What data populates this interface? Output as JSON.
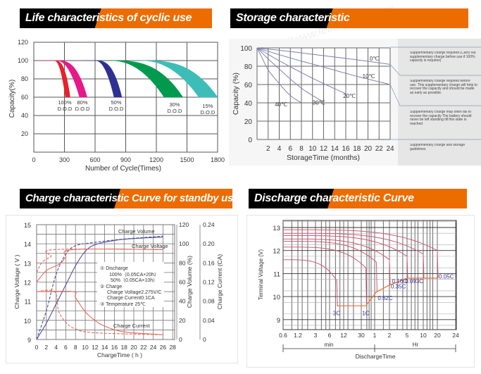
{
  "headers": {
    "life": "Life characteristics of cyclic use",
    "storage": "Storage characteristic",
    "charge": "Charge characteristic Curve for standby use",
    "discharge": "Discharge characteristic Curve"
  },
  "watermark": "http://www.felicitysolar.com",
  "chart_data": [
    {
      "type": "area",
      "title": "Life characteristics of cyclic use",
      "xlabel": "Number of Cycle(Times)",
      "ylabel": "Capacity(%)",
      "xlim": [
        0,
        1800
      ],
      "ylim": [
        0,
        120
      ],
      "xticks": [
        "0",
        "300",
        "600",
        "900",
        "1200",
        "1500",
        "1800"
      ],
      "yticks": [
        "20",
        "40",
        "60",
        "80",
        "100",
        "120"
      ],
      "grid": true,
      "series": [
        {
          "name": "100%",
          "sub": "D.O.D",
          "color": "#e8202a",
          "decline_start": 200,
          "end_cycles_min": 310,
          "end_cycles_max": 356,
          "start_capacity": 100,
          "end_capacity": 60
        },
        {
          "name": "80%",
          "sub": "D.O.D",
          "color": "#e6198a",
          "decline_start": 220,
          "end_cycles_min": 448,
          "end_cycles_max": 522,
          "start_capacity": 100,
          "end_capacity": 60
        },
        {
          "name": "50%",
          "sub": "D.O.D",
          "color": "#2e3192",
          "decline_start": 600,
          "end_cycles_min": 786,
          "end_cycles_max": 862,
          "start_capacity": 100,
          "end_capacity": 60
        },
        {
          "name": "30%",
          "sub": "D.O.D",
          "color": "#009a4e",
          "decline_start": 750,
          "end_cycles_min": 1276,
          "end_cycles_max": 1460,
          "start_capacity": 100,
          "end_capacity": 60
        },
        {
          "name": "15%",
          "sub": "D.O.D",
          "color": "#3dbdb8",
          "decline_start": 1050,
          "end_cycles_min": 1616,
          "end_cycles_max": 1800,
          "start_capacity": 100,
          "end_capacity": 60
        }
      ]
    },
    {
      "type": "line",
      "title": "Storage characteristic",
      "xlabel": "StorageTime (months)",
      "ylabel": "Capacity (%)",
      "xlim": [
        0,
        24
      ],
      "ylim": [
        0,
        100
      ],
      "xticks": [
        "2",
        "4",
        "6",
        "8",
        "10",
        "12",
        "14",
        "16",
        "18",
        "20",
        "22",
        "24"
      ],
      "yticks": [
        "0",
        "20",
        "40",
        "60",
        "80",
        "100"
      ],
      "grid": true,
      "series": [
        {
          "name": "0℃",
          "color": "#8080b0",
          "points": [
            [
              0,
              100
            ],
            [
              6,
              96
            ],
            [
              12,
              91.5
            ],
            [
              18,
              87
            ],
            [
              24,
              82
            ]
          ]
        },
        {
          "name": "10℃",
          "color": "#8080b0",
          "points": [
            [
              0,
              100
            ],
            [
              6,
              89
            ],
            [
              12,
              79
            ],
            [
              18,
              69
            ],
            [
              24,
              60
            ]
          ]
        },
        {
          "name": "20℃",
          "color": "#8080b0",
          "points": [
            [
              0,
              100
            ],
            [
              4,
              86
            ],
            [
              8,
              73
            ],
            [
              12,
              61
            ],
            [
              16,
              50
            ]
          ]
        },
        {
          "name": "30℃",
          "color": "#8080b0",
          "points": [
            [
              0,
              100
            ],
            [
              2,
              88
            ],
            [
              4,
              77
            ],
            [
              6,
              66
            ],
            [
              8,
              56
            ],
            [
              10,
              48
            ],
            [
              12,
              41
            ]
          ]
        },
        {
          "name": "40℃",
          "color": "#8080b0",
          "points": [
            [
              0,
              100
            ],
            [
              1,
              88
            ],
            [
              2,
              76
            ],
            [
              4,
              61
            ],
            [
              6,
              48
            ],
            [
              8,
              40
            ]
          ]
        }
      ],
      "guidelines": [
        "Supplementary charge required (Carry out supplementary charge before use if 100% capacity is requires)",
        "Supplementary charge required before use. This supplementary charge will help to recover the capacity and should be made  as early as possible.",
        "Supplementary charge may often fail to recover the capacity The battery should never be left standing till this state is reached",
        "Supplementary charge and storage guidelines"
      ]
    },
    {
      "type": "line",
      "title": "Charge characteristic Curve for standby use",
      "xlabel": "ChargeTime ( h )",
      "ylabel": "Charge Voltage ( V )",
      "y2label": "Charge Volume (%)",
      "y3label": "Charge Current (CA)",
      "xlim": [
        0,
        28
      ],
      "ylim": [
        9,
        15
      ],
      "y2lim": [
        0,
        120
      ],
      "y3lim": [
        0,
        0.24
      ],
      "xticks": [
        "0",
        "2",
        "4",
        "6",
        "8",
        "10",
        "12",
        "14",
        "16",
        "18",
        "20",
        "22",
        "24",
        "26",
        "28"
      ],
      "yticks": [
        "9",
        "10",
        "11",
        "12",
        "13",
        "14",
        "15"
      ],
      "y2ticks": [
        "0",
        "20",
        "40",
        "60",
        "80",
        "100",
        "120"
      ],
      "y3ticks": [
        "0",
        "0.04",
        "0.08",
        "0.12",
        "0.16",
        "0.20",
        "0.24"
      ],
      "grid": true,
      "series": [
        {
          "name": "Charge Volume",
          "variant": "100% discharge",
          "axis": "y2",
          "style": "solid",
          "color": "#5050a0",
          "points": [
            [
              0,
              0
            ],
            [
              2,
              17
            ],
            [
              4,
              37
            ],
            [
              6,
              57
            ],
            [
              8,
              77
            ],
            [
              10,
              92
            ],
            [
              12,
              99
            ],
            [
              16,
              103.5
            ],
            [
              20,
              105.5
            ],
            [
              26,
              107
            ]
          ]
        },
        {
          "name": "Charge Volume",
          "variant": "50% discharge",
          "axis": "y2",
          "style": "dashed",
          "color": "#5050a0",
          "points": [
            [
              0,
              0
            ],
            [
              2,
              30
            ],
            [
              4,
              68
            ],
            [
              6,
              89
            ],
            [
              8,
              98
            ],
            [
              12,
              101.5
            ],
            [
              18,
              105
            ],
            [
              26,
              108
            ]
          ]
        },
        {
          "name": "Charge Voltage",
          "variant": "100% discharge",
          "axis": "y",
          "style": "solid",
          "color": "#e86a5a",
          "points": [
            [
              0,
              12.0
            ],
            [
              2,
              12.6
            ],
            [
              4,
              12.85
            ],
            [
              5,
              13.0
            ],
            [
              6,
              13.3
            ],
            [
              7.5,
              13.7
            ],
            [
              26,
              13.7
            ]
          ]
        },
        {
          "name": "Charge Voltage",
          "variant": "50% discharge",
          "axis": "y",
          "style": "dashed",
          "color": "#e86a5a",
          "points": [
            [
              0,
              12.5
            ],
            [
              1,
              13.0
            ],
            [
              2,
              13.2
            ],
            [
              3,
              13.35
            ],
            [
              3.7,
              13.7
            ],
            [
              26,
              13.7
            ]
          ]
        },
        {
          "name": "Charge Current",
          "variant": "100% discharge",
          "axis": "y3",
          "style": "solid",
          "color": "#e86a5a",
          "points": [
            [
              0,
              0.1
            ],
            [
              7.5,
              0.1
            ],
            [
              8,
              0.088
            ],
            [
              10,
              0.058
            ],
            [
              12,
              0.04
            ],
            [
              14,
              0.028
            ],
            [
              18,
              0.016
            ],
            [
              26,
              0.01
            ]
          ]
        },
        {
          "name": "Charge Current",
          "variant": "50% discharge",
          "axis": "y3",
          "style": "dashed",
          "color": "#e86a5a",
          "points": [
            [
              0,
              0.1
            ],
            [
              3.7,
              0.1
            ],
            [
              4.5,
              0.06
            ],
            [
              6,
              0.036
            ],
            [
              8,
              0.022
            ],
            [
              12,
              0.014
            ],
            [
              26,
              0.01
            ]
          ]
        }
      ],
      "legend_lines": [
        "①  Discharge",
        "100%（0.05CA×20h）",
        "50%（0.05CA×10h）",
        "②  Charge",
        "Charge Voltage2.275V/C",
        "Charge Current0.1CA",
        "③  Temperature 25℃"
      ]
    },
    {
      "type": "line",
      "title": "Discharge characteristic Curve",
      "xlabel": "DischargeTime",
      "ylabel": "Terminal Voltage  (V)",
      "x_scale": "log",
      "xticks": [
        "0.6",
        "1.2",
        "3",
        "6",
        "12",
        "30",
        "1",
        "2",
        "5",
        "10",
        "20",
        "24"
      ],
      "xtick_minutes": [
        0.6,
        1.2,
        3,
        6,
        12,
        30,
        60,
        120,
        300,
        600,
        1200,
        1440
      ],
      "x_units": [
        "min",
        "Hr"
      ],
      "ylim": [
        8.6,
        13.3
      ],
      "yticks": [
        "9",
        "10",
        "11",
        "12",
        "13"
      ],
      "grid": true,
      "series": [
        {
          "name": "3C",
          "color": "#d05a78",
          "start_voltage": 11.6,
          "end_minutes": 8.5,
          "end_voltage": 9.6
        },
        {
          "name": "1C",
          "color": "#d05a78",
          "start_voltage": 12.15,
          "end_minutes": 38,
          "end_voltage": 9.6
        },
        {
          "name": "0.62C",
          "color": "#d05a78",
          "start_voltage": 12.4,
          "end_minutes": 65,
          "end_voltage": 10.2
        },
        {
          "name": "0.35C",
          "color": "#d05a78",
          "start_voltage": 12.5,
          "end_minutes": 120,
          "end_voltage": 10.5
        },
        {
          "name": "0.16C",
          "color": "#d05a78",
          "start_voltage": 12.65,
          "end_minutes": 300,
          "end_voltage": 10.8
        },
        {
          "name": "0.093C",
          "color": "#d05a78",
          "start_voltage": 12.75,
          "end_minutes": 600,
          "end_voltage": 10.8
        },
        {
          "name": "0.05C",
          "color": "#d05a78",
          "start_voltage": 12.9,
          "end_minutes": 1200,
          "end_voltage": 10.8
        }
      ],
      "cutoff_line": {
        "color": "#f07030",
        "points": [
          [
            8.5,
            9.6
          ],
          [
            38,
            9.6
          ],
          [
            65,
            10.2
          ],
          [
            120,
            10.5
          ],
          [
            300,
            10.8
          ],
          [
            1200,
            10.8
          ]
        ]
      },
      "label_color": "#333399"
    }
  ]
}
